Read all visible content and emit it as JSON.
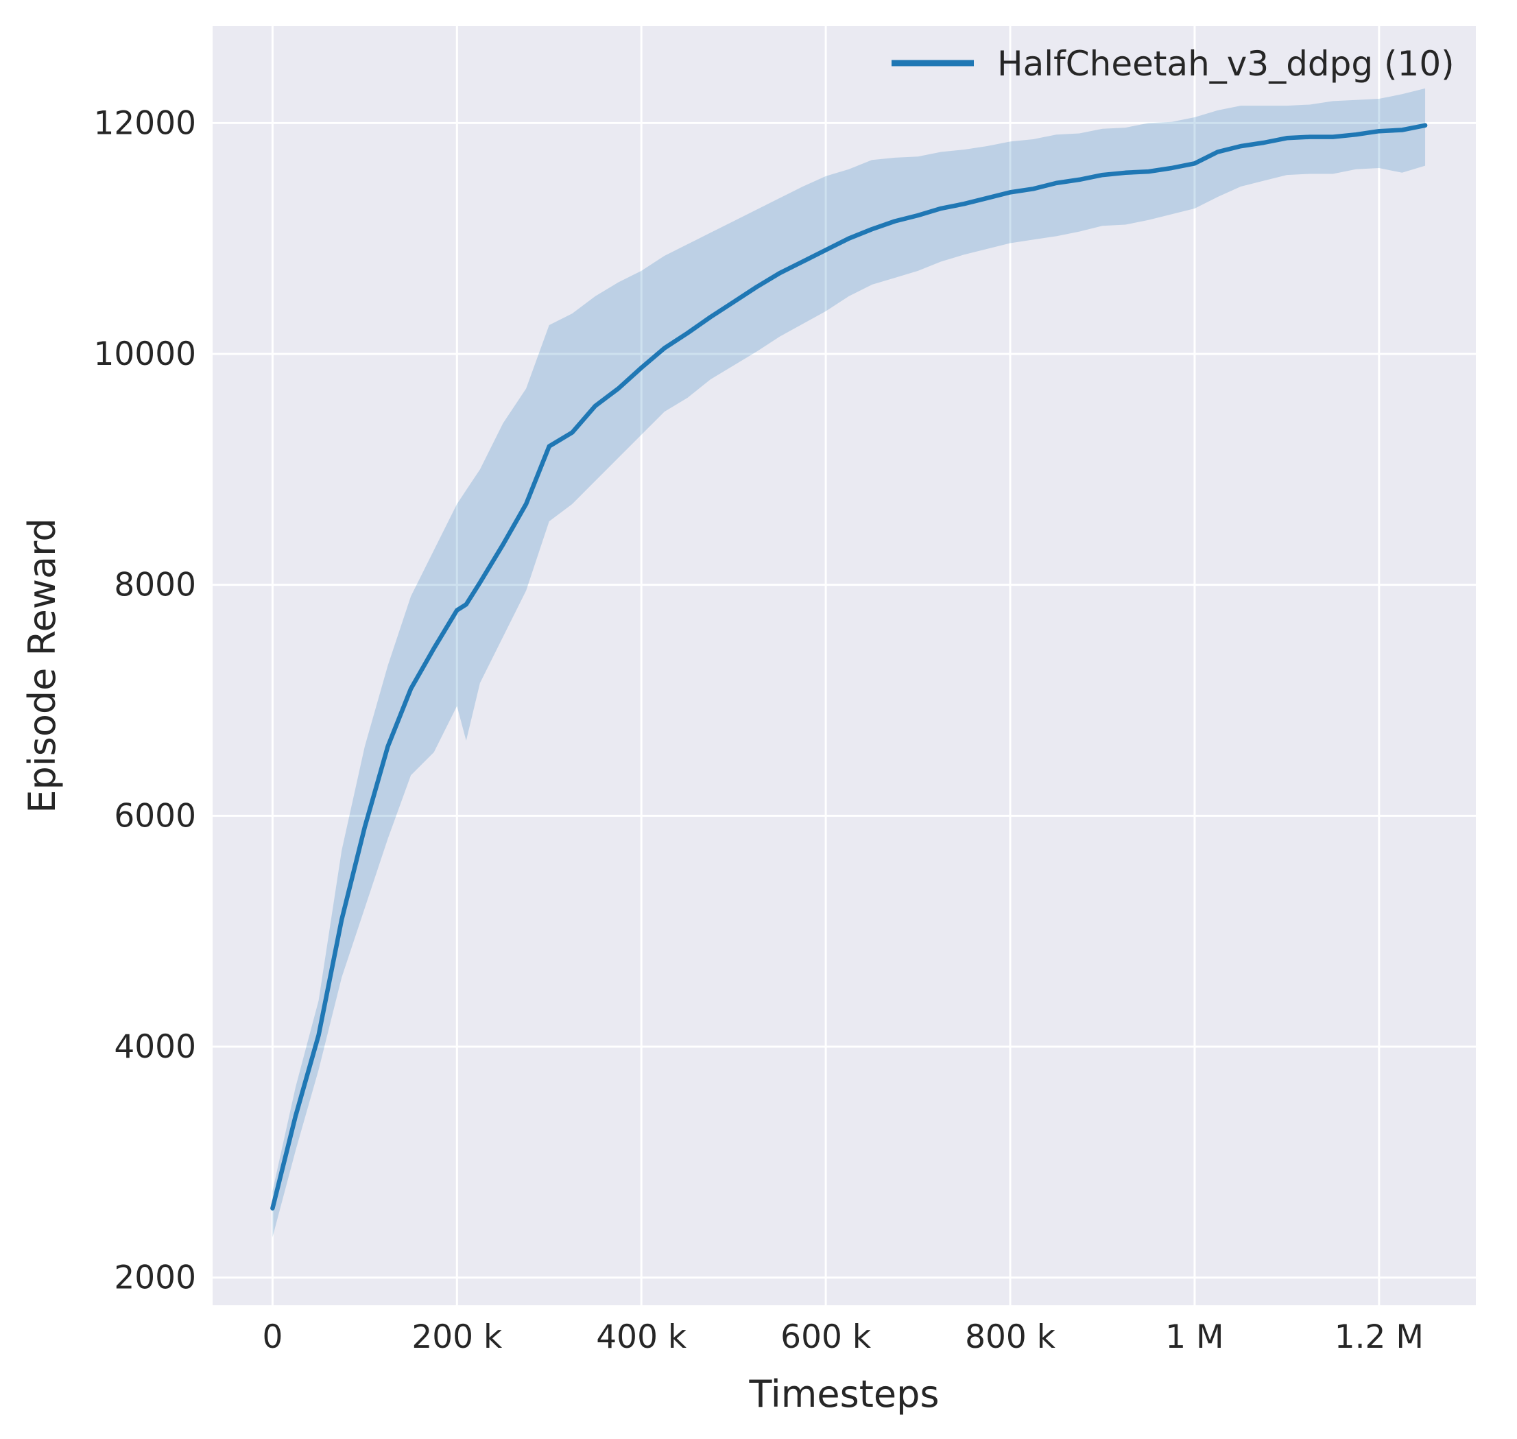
{
  "figure": {
    "background": "#ffffff",
    "axes_background": "#eaeaf2",
    "grid_color": "#ffffff",
    "text_color": "#262626"
  },
  "chart_data": {
    "type": "line",
    "title": "",
    "xlabel": "Timesteps",
    "ylabel": "Episode Reward",
    "grid": true,
    "legend_position": "upper right",
    "legend": [
      {
        "label": "HalfCheetah_v3_ddpg (10)",
        "color": "#1f77b4"
      }
    ],
    "xlim": [
      -65000,
      1305000
    ],
    "ylim": [
      1760,
      12840
    ],
    "xticks": {
      "values": [
        0,
        200000,
        400000,
        600000,
        800000,
        1000000,
        1200000
      ],
      "labels": [
        "0",
        "200 k",
        "400 k",
        "600 k",
        "800 k",
        "1 M",
        "1.2 M"
      ]
    },
    "yticks": {
      "values": [
        2000,
        4000,
        6000,
        8000,
        10000,
        12000
      ],
      "labels": [
        "2000",
        "4000",
        "6000",
        "8000",
        "10000",
        "12000"
      ]
    },
    "series": [
      {
        "name": "HalfCheetah_v3_ddpg (10)",
        "color": "#1f77b4",
        "band_opacity": 0.22,
        "x": [
          0,
          25000,
          50000,
          75000,
          100000,
          125000,
          150000,
          175000,
          200000,
          210000,
          225000,
          250000,
          275000,
          300000,
          325000,
          350000,
          375000,
          400000,
          425000,
          450000,
          475000,
          500000,
          525000,
          550000,
          575000,
          600000,
          625000,
          650000,
          675000,
          700000,
          725000,
          750000,
          775000,
          800000,
          825000,
          850000,
          875000,
          900000,
          925000,
          950000,
          975000,
          1000000,
          1025000,
          1050000,
          1075000,
          1100000,
          1125000,
          1150000,
          1175000,
          1200000,
          1225000,
          1250000
        ],
        "mean": [
          2600,
          3400,
          4100,
          5100,
          5900,
          6600,
          7100,
          7450,
          7780,
          7830,
          8020,
          8350,
          8700,
          9200,
          9320,
          9550,
          9700,
          9880,
          10050,
          10180,
          10320,
          10450,
          10580,
          10700,
          10800,
          10900,
          11000,
          11080,
          11150,
          11200,
          11260,
          11300,
          11350,
          11400,
          11430,
          11480,
          11510,
          11550,
          11570,
          11580,
          11610,
          11650,
          11750,
          11800,
          11830,
          11870,
          11880,
          11880,
          11900,
          11930,
          11940,
          11980
        ],
        "lower": [
          2350,
          3100,
          3800,
          4600,
          5200,
          5800,
          6350,
          6550,
          6950,
          6650,
          7150,
          7550,
          7950,
          8550,
          8700,
          8900,
          9100,
          9300,
          9500,
          9620,
          9780,
          9900,
          10020,
          10150,
          10260,
          10370,
          10500,
          10600,
          10660,
          10720,
          10800,
          10860,
          10910,
          10960,
          10990,
          11020,
          11060,
          11110,
          11120,
          11160,
          11210,
          11260,
          11360,
          11450,
          11500,
          11550,
          11560,
          11560,
          11600,
          11610,
          11570,
          11630
        ],
        "upper": [
          2750,
          3650,
          4400,
          5700,
          6600,
          7300,
          7900,
          8300,
          8700,
          8820,
          9000,
          9400,
          9700,
          10250,
          10350,
          10500,
          10620,
          10720,
          10850,
          10950,
          11050,
          11150,
          11250,
          11350,
          11450,
          11540,
          11600,
          11680,
          11700,
          11710,
          11750,
          11770,
          11800,
          11840,
          11860,
          11900,
          11910,
          11950,
          11960,
          12000,
          12010,
          12050,
          12110,
          12150,
          12150,
          12150,
          12160,
          12190,
          12200,
          12210,
          12250,
          12300
        ]
      }
    ]
  }
}
